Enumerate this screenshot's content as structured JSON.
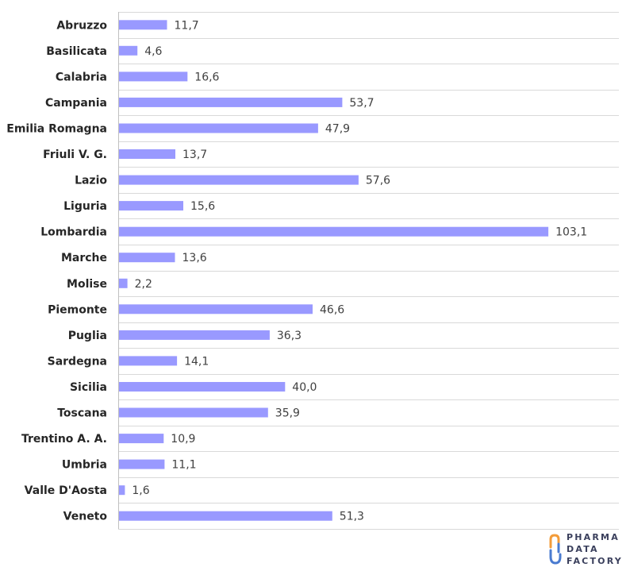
{
  "chart_data": {
    "type": "bar",
    "orientation": "horizontal",
    "categories": [
      "Abruzzo",
      "Basilicata",
      "Calabria",
      "Campania",
      "Emilia Romagna",
      "Friuli V. G.",
      "Lazio",
      "Liguria",
      "Lombardia",
      "Marche",
      "Molise",
      "Piemonte",
      "Puglia",
      "Sardegna",
      "Sicilia",
      "Toscana",
      "Trentino A. A.",
      "Umbria",
      "Valle D'Aosta",
      "Veneto"
    ],
    "values": [
      11.7,
      4.6,
      16.6,
      53.7,
      47.9,
      13.7,
      57.6,
      15.6,
      103.1,
      13.6,
      2.2,
      46.6,
      36.3,
      14.1,
      40.0,
      35.9,
      10.9,
      11.1,
      1.6,
      51.3
    ],
    "value_labels": [
      "11,7",
      "4,6",
      "16,6",
      "53,7",
      "47,9",
      "13,7",
      "57,6",
      "15,6",
      "103,1",
      "13,6",
      "2,2",
      "46,6",
      "36,3",
      "14,1",
      "40,0",
      "35,9",
      "10,9",
      "11,1",
      "1,6",
      "51,3"
    ],
    "title": "",
    "xlabel": "",
    "ylabel": "",
    "xlim": [
      0,
      120
    ],
    "grid": "horizontal lines between categories",
    "legend": "none",
    "bar_color": "#9999ff"
  },
  "logo": {
    "lines": [
      "PHARMA",
      "DATA",
      "FACTORY"
    ],
    "colors": {
      "primary": "#3a3f5c",
      "accent_orange": "#f39c3a",
      "accent_blue": "#4a7bd0"
    }
  }
}
